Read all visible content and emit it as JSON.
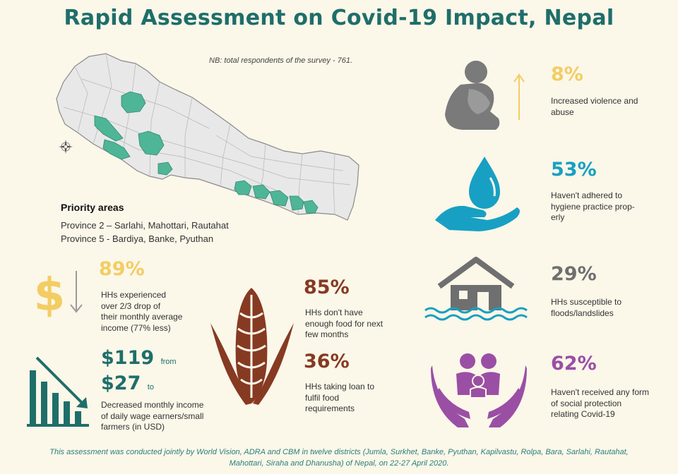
{
  "title": "Rapid Assessment on Covid-19 Impact, Nepal",
  "note": "NB: total respondents of the survey - 761.",
  "priority": {
    "heading": "Priority areas",
    "province2": "Province 2 – Sarlahi, Mahottari, Rautahat",
    "province5": "Province 5 - Bardiya, Banke, Pyuthan"
  },
  "stats": {
    "income_drop": {
      "value": "89%",
      "text": [
        "HHs experienced",
        "over 2/3 drop of",
        "their monthly average",
        "income (77% less)"
      ],
      "icon": "dollar-down-icon"
    },
    "wage": {
      "from_value": "$119",
      "from_word": "from",
      "to_value": "$27",
      "to_word": "to",
      "text": [
        "Decreased monthly income",
        "of daily wage earners/small",
        "farmers (in USD)"
      ],
      "icon": "declining-bar-chart-icon"
    },
    "food": {
      "value": "85%",
      "text": [
        "HHs don't have",
        "enough food for next",
        "few months"
      ],
      "icon": "corn-icon"
    },
    "loan": {
      "value": "36%",
      "text": [
        "HHs taking loan to",
        "fulfil food",
        "requirements"
      ]
    },
    "violence": {
      "value": "8%",
      "text": [
        "Increased violence and",
        "abuse"
      ],
      "icon": "distressed-person-icon"
    },
    "hygiene": {
      "value": "53%",
      "text": [
        "Haven't adhered to",
        "hygiene practice prop-",
        "erly"
      ],
      "icon": "water-drop-hand-icon"
    },
    "floods": {
      "value": "29%",
      "text": [
        "HHs susceptible to",
        "floods/landslides"
      ],
      "icon": "flooded-house-icon"
    },
    "protection": {
      "value": "62%",
      "text": [
        "Haven't received any form",
        "of social protection",
        "relating Covid-19"
      ],
      "icon": "family-protection-icon"
    }
  },
  "footer": [
    "This assessment was conducted jointly by World Vision, ADRA and CBM in twelve districts (Jumla, Surkhet, Banke, Pyuthan, Kapilvastu, Rolpa, Bara, Sarlahi, Rautahat,",
    "Mahottari, Siraha and Dhanusha) of Nepal, on 22-27 April 2020."
  ],
  "colors": {
    "teal": "#1f6e6a",
    "yellow": "#f3cd63",
    "brown": "#863a22",
    "grey": "#6f6f6f",
    "cyan": "#17a0c3",
    "purple": "#9a4fa5",
    "map_highlight": "#4fb597",
    "background": "#fbf7e9"
  }
}
